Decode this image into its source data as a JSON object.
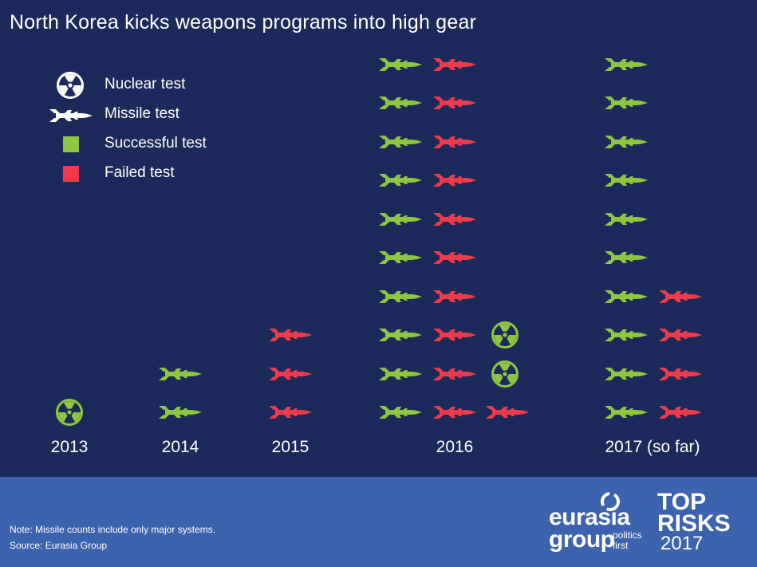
{
  "title": "North Korea kicks weapons programs into high gear",
  "legend": [
    {
      "icon": "nuclear-icon",
      "label": "Nuclear test",
      "color": "#ffffff"
    },
    {
      "icon": "missile-icon",
      "label": "Missile test",
      "color": "#ffffff"
    },
    {
      "icon": "square-icon",
      "label": "Successful test",
      "color": "#8dc63f"
    },
    {
      "icon": "square-icon",
      "label": "Failed test",
      "color": "#ef3a4a"
    }
  ],
  "colors": {
    "success": "#8dc63f",
    "failed": "#ef3a4a",
    "background": "#1b2a5a",
    "footer": "#3b63ae"
  },
  "chart_data": {
    "type": "pictogram",
    "title": "North Korea kicks weapons programs into high gear",
    "categories": [
      "2013",
      "2014",
      "2015",
      "2016",
      "2017 (so far)"
    ],
    "series": [
      {
        "name": "Successful test",
        "test": "missile",
        "values": [
          0,
          2,
          0,
          10,
          10
        ]
      },
      {
        "name": "Failed test",
        "test": "missile",
        "values": [
          0,
          0,
          3,
          11,
          4
        ]
      },
      {
        "name": "Successful test",
        "test": "nuclear",
        "values": [
          1,
          0,
          0,
          2,
          0
        ]
      }
    ]
  },
  "footer": {
    "note": "Note: Missile counts include only major systems.",
    "source": "Source: Eurasia Group",
    "brand_line1": "eurasia",
    "brand_line2": "group",
    "brand_tag1": "politics",
    "brand_tag2": "first",
    "risk_line1": "TOP",
    "risk_line2": "RISKS",
    "risk_year": "2017"
  }
}
